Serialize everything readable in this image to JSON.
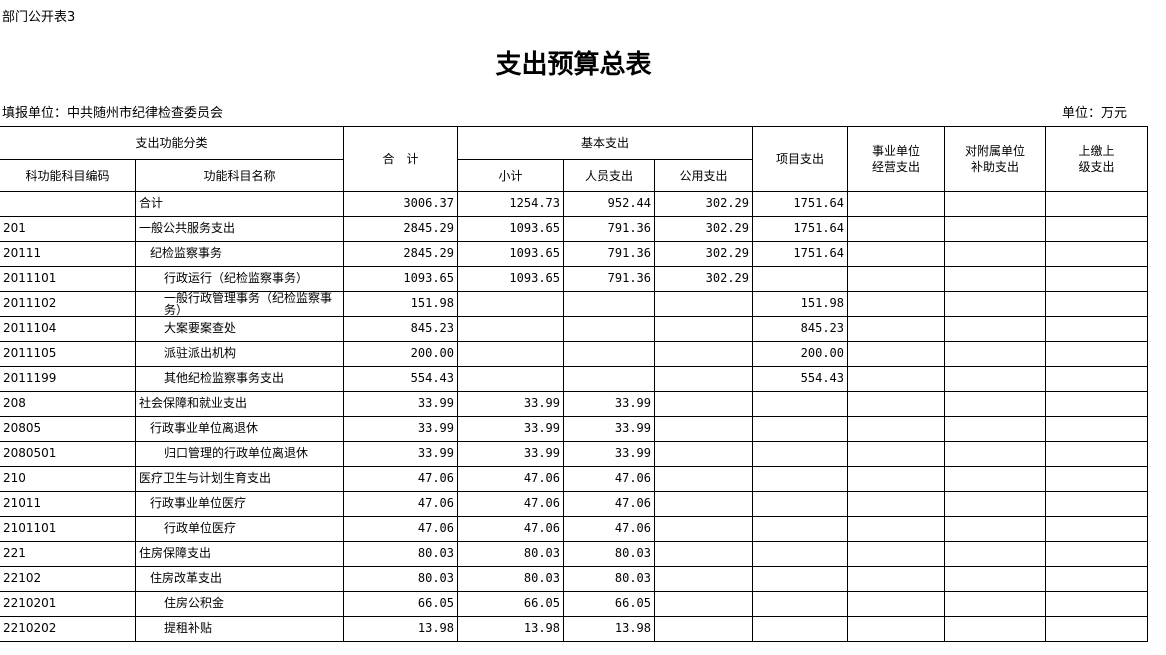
{
  "doc_label": "部门公开表3",
  "title": "支出预算总表",
  "unit_left": "填报单位：中共随州市纪律检查委员会",
  "unit_right": "单位：万元",
  "headers": {
    "func_class": "支出功能分类",
    "total": "合　计",
    "basic": "基本支出",
    "project": "项目支出",
    "enterprise": "事业单位\n经营支出",
    "subsidy": "对附属单位\n补助支出",
    "upper": "上缴上\n级支出",
    "code": "科功能科目编码",
    "name": "功能科目名称",
    "subtotal": "小计",
    "personnel": "人员支出",
    "public": "公用支出"
  },
  "rows": [
    {
      "code": "",
      "name": "合计",
      "level": 0,
      "total": "3006.37",
      "subtotal": "1254.73",
      "personnel": "952.44",
      "public": "302.29",
      "project": "1751.64"
    },
    {
      "code": "201",
      "name": "一般公共服务支出",
      "level": 0,
      "total": "2845.29",
      "subtotal": "1093.65",
      "personnel": "791.36",
      "public": "302.29",
      "project": "1751.64"
    },
    {
      "code": "20111",
      "name": "纪检监察事务",
      "level": 1,
      "total": "2845.29",
      "subtotal": "1093.65",
      "personnel": "791.36",
      "public": "302.29",
      "project": "1751.64"
    },
    {
      "code": "2011101",
      "name": "行政运行（纪检监察事务）",
      "level": 2,
      "total": "1093.65",
      "subtotal": "1093.65",
      "personnel": "791.36",
      "public": "302.29",
      "project": ""
    },
    {
      "code": "2011102",
      "name": "一般行政管理事务（纪检监察事务）",
      "level": 2,
      "total": "151.98",
      "subtotal": "",
      "personnel": "",
      "public": "",
      "project": "151.98"
    },
    {
      "code": "2011104",
      "name": "大案要案查处",
      "level": 2,
      "total": "845.23",
      "subtotal": "",
      "personnel": "",
      "public": "",
      "project": "845.23"
    },
    {
      "code": "2011105",
      "name": "派驻派出机构",
      "level": 2,
      "total": "200.00",
      "subtotal": "",
      "personnel": "",
      "public": "",
      "project": "200.00"
    },
    {
      "code": "2011199",
      "name": "其他纪检监察事务支出",
      "level": 2,
      "total": "554.43",
      "subtotal": "",
      "personnel": "",
      "public": "",
      "project": "554.43"
    },
    {
      "code": "208",
      "name": "社会保障和就业支出",
      "level": 0,
      "total": "33.99",
      "subtotal": "33.99",
      "personnel": "33.99",
      "public": "",
      "project": ""
    },
    {
      "code": "20805",
      "name": "行政事业单位离退休",
      "level": 1,
      "total": "33.99",
      "subtotal": "33.99",
      "personnel": "33.99",
      "public": "",
      "project": ""
    },
    {
      "code": "2080501",
      "name": "归口管理的行政单位离退休",
      "level": 2,
      "total": "33.99",
      "subtotal": "33.99",
      "personnel": "33.99",
      "public": "",
      "project": ""
    },
    {
      "code": "210",
      "name": "医疗卫生与计划生育支出",
      "level": 0,
      "total": "47.06",
      "subtotal": "47.06",
      "personnel": "47.06",
      "public": "",
      "project": ""
    },
    {
      "code": "21011",
      "name": "行政事业单位医疗",
      "level": 1,
      "total": "47.06",
      "subtotal": "47.06",
      "personnel": "47.06",
      "public": "",
      "project": ""
    },
    {
      "code": "2101101",
      "name": "行政单位医疗",
      "level": 2,
      "total": "47.06",
      "subtotal": "47.06",
      "personnel": "47.06",
      "public": "",
      "project": ""
    },
    {
      "code": "221",
      "name": "住房保障支出",
      "level": 0,
      "total": "80.03",
      "subtotal": "80.03",
      "personnel": "80.03",
      "public": "",
      "project": ""
    },
    {
      "code": "22102",
      "name": "住房改革支出",
      "level": 1,
      "total": "80.03",
      "subtotal": "80.03",
      "personnel": "80.03",
      "public": "",
      "project": ""
    },
    {
      "code": "2210201",
      "name": "住房公积金",
      "level": 2,
      "total": "66.05",
      "subtotal": "66.05",
      "personnel": "66.05",
      "public": "",
      "project": ""
    },
    {
      "code": "2210202",
      "name": "提租补贴",
      "level": 2,
      "total": "13.98",
      "subtotal": "13.98",
      "personnel": "13.98",
      "public": "",
      "project": ""
    }
  ]
}
